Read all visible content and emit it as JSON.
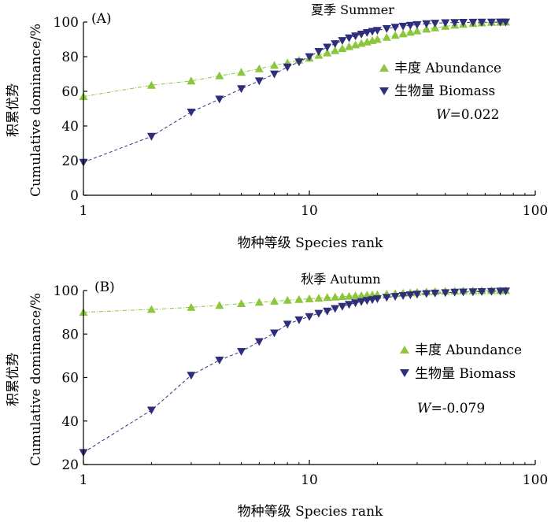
{
  "chart_data": [
    {
      "type": "scatter",
      "panel_label": "(A)",
      "title": "夏季 Summer",
      "xlabel": "物种等级 Species rank",
      "ylabel_cn": "积累优势",
      "ylabel_en": "Cumulative dominance/%",
      "xscale": "log",
      "xlim": [
        1,
        100
      ],
      "ylim": [
        0,
        100
      ],
      "xticks": [
        1,
        10,
        100
      ],
      "xtick_labels": [
        "1",
        "10",
        "100"
      ],
      "yticks": [
        0,
        20,
        40,
        60,
        80,
        100
      ],
      "ytick_labels": [
        "0",
        "20",
        "40",
        "60",
        "80",
        "100"
      ],
      "legend_position": "right",
      "stat_label": "W",
      "stat_value": "=0.022",
      "series": [
        {
          "name": "丰度 Abundance",
          "marker": "triangle-up",
          "color": "#8cc63e",
          "x": [
            1,
            2,
            3,
            4,
            5,
            6,
            7,
            8,
            9,
            10,
            11,
            12,
            13,
            14,
            15,
            16,
            17,
            18,
            19,
            20,
            22,
            24,
            26,
            28,
            30,
            33,
            36,
            40,
            44,
            48,
            53,
            58,
            64,
            70,
            74
          ],
          "y": [
            57,
            63.5,
            66,
            69,
            71,
            73,
            75,
            76.5,
            78,
            79.2,
            80.8,
            82.2,
            83.5,
            84.7,
            85.8,
            86.8,
            87.7,
            88.5,
            89.3,
            90,
            91.2,
            92.3,
            93.2,
            94.1,
            94.9,
            95.9,
            96.7,
            97.5,
            98.2,
            98.7,
            99.2,
            99.5,
            99.8,
            99.9,
            100
          ]
        },
        {
          "name": "生物量 Biomass",
          "marker": "triangle-down",
          "color": "#2e2e7a",
          "x": [
            1,
            2,
            3,
            4,
            5,
            6,
            7,
            8,
            9,
            10,
            11,
            12,
            13,
            14,
            15,
            16,
            17,
            18,
            19,
            20,
            22,
            24,
            26,
            28,
            30,
            33,
            36,
            40,
            44,
            48,
            53,
            58,
            64,
            70,
            74
          ],
          "y": [
            19,
            34,
            48,
            55.5,
            61.5,
            66,
            70,
            74,
            77,
            80,
            83,
            85.5,
            87.5,
            89.3,
            90.8,
            92,
            93,
            93.9,
            94.6,
            95.2,
            96.2,
            97,
            97.6,
            98.1,
            98.5,
            99,
            99.3,
            99.6,
            99.7,
            99.8,
            99.85,
            99.9,
            99.95,
            100,
            100
          ]
        }
      ]
    },
    {
      "type": "scatter",
      "panel_label": "(B)",
      "title": "秋季 Autumn",
      "xlabel": "物种等级 Species rank",
      "ylabel_cn": "积累优势",
      "ylabel_en": "Cumulative dominance/%",
      "xscale": "log",
      "xlim": [
        1,
        100
      ],
      "ylim": [
        20,
        100
      ],
      "xticks": [
        1,
        10,
        100
      ],
      "xtick_labels": [
        "1",
        "10",
        "100"
      ],
      "yticks": [
        20,
        40,
        60,
        80,
        100
      ],
      "ytick_labels": [
        "20",
        "40",
        "60",
        "80",
        "100"
      ],
      "legend_position": "right",
      "stat_label": "W",
      "stat_value": "=-0.079",
      "series": [
        {
          "name": "丰度 Abundance",
          "marker": "triangle-up",
          "color": "#8cc63e",
          "x": [
            1,
            2,
            3,
            4,
            5,
            6,
            7,
            8,
            9,
            10,
            11,
            12,
            13,
            14,
            15,
            16,
            17,
            18,
            19,
            20,
            22,
            24,
            26,
            28,
            30,
            33,
            36,
            40,
            44,
            48,
            53,
            58,
            64,
            70,
            74
          ],
          "y": [
            90,
            91.3,
            92.3,
            93.2,
            94,
            94.6,
            95.1,
            95.5,
            95.9,
            96.2,
            96.5,
            96.8,
            97,
            97.2,
            97.4,
            97.6,
            97.7,
            97.9,
            98,
            98.1,
            98.4,
            98.6,
            98.8,
            99,
            99.2,
            99.4,
            99.5,
            99.7,
            99.8,
            99.85,
            99.9,
            99.95,
            100,
            100,
            100
          ]
        },
        {
          "name": "生物量 Biomass",
          "marker": "triangle-down",
          "color": "#2e2e7a",
          "x": [
            1,
            2,
            3,
            4,
            5,
            6,
            7,
            8,
            9,
            10,
            11,
            12,
            13,
            14,
            15,
            16,
            17,
            18,
            19,
            20,
            22,
            24,
            26,
            28,
            30,
            33,
            36,
            40,
            44,
            48,
            53,
            58,
            64,
            70,
            74
          ],
          "y": [
            25.5,
            45,
            61,
            68,
            72,
            76.5,
            80.5,
            84.5,
            86.5,
            88,
            89.5,
            90.5,
            91.7,
            92.7,
            93.6,
            94.3,
            94.9,
            95.4,
            95.8,
            96.2,
            96.8,
            97.3,
            97.7,
            98,
            98.3,
            98.6,
            98.8,
            99,
            99.2,
            99.3,
            99.4,
            99.5,
            99.6,
            99.7,
            99.8
          ]
        }
      ]
    }
  ]
}
